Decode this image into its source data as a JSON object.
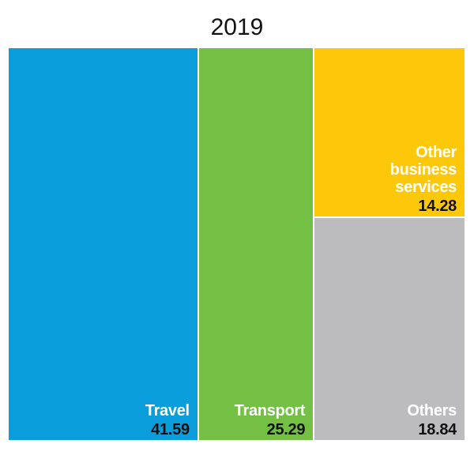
{
  "chart_data": {
    "type": "treemap",
    "title": "2019",
    "items": [
      {
        "label": "Travel",
        "value": 41.59,
        "value_label": "41.59",
        "color": "#0a9ddc"
      },
      {
        "label": "Transport",
        "value": 25.29,
        "value_label": "25.29",
        "color": "#73c044"
      },
      {
        "label": "Other\nbusiness\nservices",
        "value": 14.28,
        "value_label": "14.28",
        "color": "#fdc70a"
      },
      {
        "label": "Others",
        "value": 18.84,
        "value_label": "18.84",
        "color": "#bcbcbe"
      }
    ]
  }
}
